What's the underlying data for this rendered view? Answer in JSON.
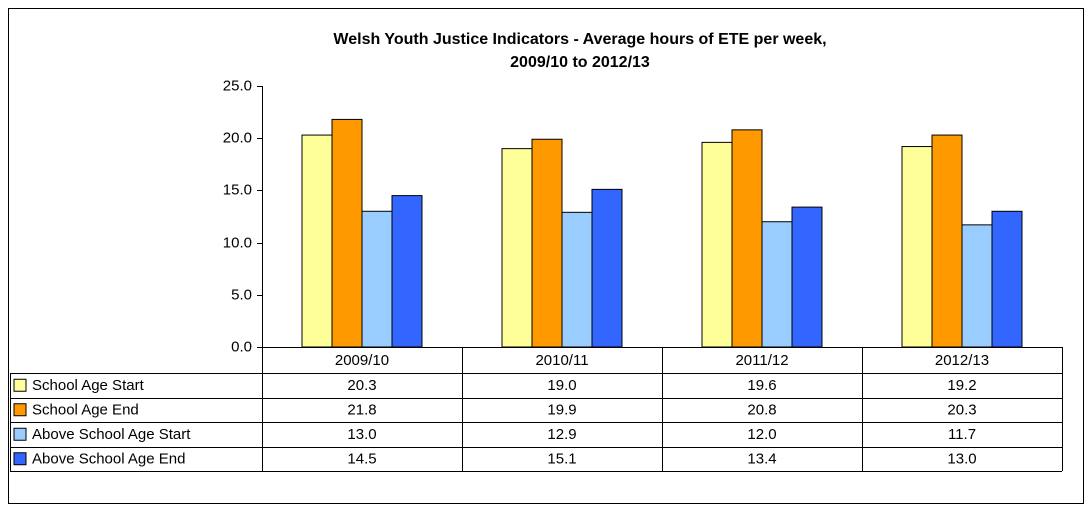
{
  "chart_data": {
    "type": "bar",
    "title": [
      "Welsh Youth Justice Indicators - Average hours of ETE per week,",
      "2009/10 to 2012/13"
    ],
    "categories": [
      "2009/10",
      "2010/11",
      "2011/12",
      "2012/13"
    ],
    "series": [
      {
        "name": "School Age Start",
        "color": "#ffff99",
        "values": [
          20.3,
          19.0,
          19.6,
          19.2
        ],
        "value_labels": [
          "20.3",
          "19.0",
          "19.6",
          "19.2"
        ]
      },
      {
        "name": "School Age End",
        "color": "#ff9900",
        "values": [
          21.8,
          19.9,
          20.8,
          20.3
        ],
        "value_labels": [
          "21.8",
          "19.9",
          "20.8",
          "20.3"
        ]
      },
      {
        "name": "Above School Age Start",
        "color": "#99ccff",
        "values": [
          13.0,
          12.9,
          12.0,
          11.7
        ],
        "value_labels": [
          "13.0",
          "12.9",
          "12.0",
          "11.7"
        ]
      },
      {
        "name": "Above School Age End",
        "color": "#3366ff",
        "values": [
          14.5,
          15.1,
          13.4,
          13.0
        ],
        "value_labels": [
          "14.5",
          "15.1",
          "13.4",
          "13.0"
        ]
      }
    ],
    "ylim": [
      0,
      25
    ],
    "yticks": [
      {
        "value": 0,
        "label": "0.0"
      },
      {
        "value": 5,
        "label": "5.0"
      },
      {
        "value": 10,
        "label": "10.0"
      },
      {
        "value": 15,
        "label": "15.0"
      },
      {
        "value": 20,
        "label": "20.0"
      },
      {
        "value": 25,
        "label": "25.0"
      }
    ],
    "grid": false,
    "data_table": true
  }
}
